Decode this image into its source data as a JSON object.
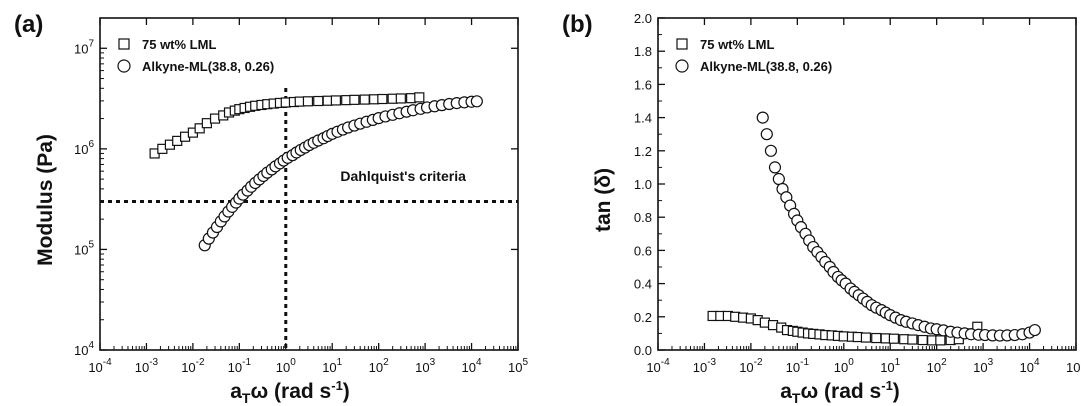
{
  "chart_data": [
    {
      "type": "scatter",
      "panel_label": "(a)",
      "xlabel": {
        "base": "a",
        "sub": "T",
        "greek": "ω",
        "units": " (rad s",
        "sup": "-1",
        "close": ")"
      },
      "ylabel": "Modulus (Pa)",
      "xscale": "log",
      "yscale": "log",
      "xlim": [
        0.0001,
        100000
      ],
      "ylim": [
        10000,
        20000000
      ],
      "x_ticks": [
        {
          "value": 0.0001,
          "base": "10",
          "exp": "-4"
        },
        {
          "value": 0.001,
          "base": "10",
          "exp": "-3"
        },
        {
          "value": 0.01,
          "base": "10",
          "exp": "-2"
        },
        {
          "value": 0.1,
          "base": "10",
          "exp": "-1"
        },
        {
          "value": 1,
          "base": "10",
          "exp": "0"
        },
        {
          "value": 10,
          "base": "10",
          "exp": "1"
        },
        {
          "value": 100,
          "base": "10",
          "exp": "2"
        },
        {
          "value": 1000,
          "base": "10",
          "exp": "3"
        },
        {
          "value": 10000,
          "base": "10",
          "exp": "4"
        },
        {
          "value": 100000,
          "base": "10",
          "exp": "5"
        }
      ],
      "y_ticks": [
        {
          "value": 10000,
          "base": "10",
          "exp": "4"
        },
        {
          "value": 100000,
          "base": "10",
          "exp": "5"
        },
        {
          "value": 1000000,
          "base": "10",
          "exp": "6"
        },
        {
          "value": 10000000,
          "base": "10",
          "exp": "7"
        }
      ],
      "legend_position": "top-left",
      "grid": false,
      "series": [
        {
          "name": "75 wt% LML",
          "marker": "square",
          "x": [
            0.0015,
            0.0022,
            0.0032,
            0.0046,
            0.0068,
            0.01,
            0.014,
            0.02,
            0.03,
            0.045,
            0.06,
            0.08,
            0.1,
            0.13,
            0.17,
            0.22,
            0.3,
            0.4,
            0.55,
            0.75,
            1,
            1.5,
            2,
            3,
            5,
            8,
            12,
            20,
            30,
            50,
            80,
            120,
            200,
            300,
            500,
            750
          ],
          "y": [
            900000,
            1000000,
            1100000,
            1200000,
            1320000,
            1450000,
            1600000,
            1800000,
            2000000,
            2150000,
            2300000,
            2400000,
            2480000,
            2550000,
            2620000,
            2680000,
            2730000,
            2780000,
            2820000,
            2860000,
            2890000,
            2920000,
            2950000,
            2970000,
            2990000,
            3010000,
            3030000,
            3050000,
            3070000,
            3090000,
            3110000,
            3130000,
            3150000,
            3170000,
            3190000,
            3250000
          ]
        },
        {
          "name": "Alkyne-ML(38.8, 0.26)",
          "marker": "circle",
          "x": [
            0.018,
            0.022,
            0.027,
            0.033,
            0.04,
            0.048,
            0.058,
            0.07,
            0.085,
            0.1,
            0.12,
            0.15,
            0.18,
            0.22,
            0.27,
            0.33,
            0.4,
            0.5,
            0.6,
            0.75,
            0.9,
            1.1,
            1.4,
            1.7,
            2.1,
            2.6,
            3.2,
            4,
            5,
            6.5,
            8,
            10,
            13,
            17,
            22,
            30,
            40,
            55,
            75,
            100,
            140,
            200,
            280,
            400,
            550,
            800,
            1100,
            1600,
            2300,
            3300,
            4800,
            7000,
            10000,
            13000
          ],
          "y": [
            110000,
            128000,
            147000,
            167000,
            190000,
            213000,
            238000,
            265000,
            292000,
            320000,
            350000,
            385000,
            420000,
            458000,
            497000,
            538000,
            580000,
            625000,
            670000,
            718000,
            765000,
            815000,
            865000,
            920000,
            975000,
            1030000,
            1090000,
            1150000,
            1210000,
            1275000,
            1340000,
            1410000,
            1480000,
            1555000,
            1630000,
            1705000,
            1780000,
            1860000,
            1940000,
            2020000,
            2100000,
            2180000,
            2260000,
            2340000,
            2420000,
            2500000,
            2580000,
            2650000,
            2720000,
            2790000,
            2850000,
            2900000,
            2940000,
            2970000
          ]
        }
      ],
      "reference_lines": [
        {
          "orientation": "horizontal",
          "value": 300000
        },
        {
          "orientation": "vertical",
          "value": 1
        }
      ],
      "annotations": [
        {
          "text": "Dahlquist's criteria",
          "x": 15,
          "y": 480000
        }
      ]
    },
    {
      "type": "scatter",
      "panel_label": "(b)",
      "xlabel": {
        "base": "a",
        "sub": "T",
        "greek": "ω",
        "units": " (rad s",
        "sup": "-1",
        "close": ")"
      },
      "ylabel": {
        "prefix": "tan (",
        "greek": "δ",
        "suffix": ")"
      },
      "xscale": "log",
      "yscale": "linear",
      "xlim": [
        0.0001,
        100000
      ],
      "ylim": [
        0,
        2
      ],
      "x_ticks": [
        {
          "value": 0.0001,
          "base": "10",
          "exp": "-4"
        },
        {
          "value": 0.001,
          "base": "10",
          "exp": "-3"
        },
        {
          "value": 0.01,
          "base": "10",
          "exp": "-2"
        },
        {
          "value": 0.1,
          "base": "10",
          "exp": "-1"
        },
        {
          "value": 1,
          "base": "10",
          "exp": "0"
        },
        {
          "value": 10,
          "base": "10",
          "exp": "1"
        },
        {
          "value": 100,
          "base": "10",
          "exp": "2"
        },
        {
          "value": 1000,
          "base": "10",
          "exp": "3"
        },
        {
          "value": 10000,
          "base": "10",
          "exp": "4"
        },
        {
          "value": 100000,
          "base": "10",
          "exp": "5"
        }
      ],
      "y_ticks": [
        "0.0",
        "0.2",
        "0.4",
        "0.6",
        "0.8",
        "1.0",
        "1.2",
        "1.4",
        "1.6",
        "1.8",
        "2.0"
      ],
      "legend_position": "top-left",
      "grid": false,
      "series": [
        {
          "name": "75 wt% LML",
          "marker": "square",
          "x": [
            0.0015,
            0.0022,
            0.0032,
            0.0046,
            0.0068,
            0.01,
            0.014,
            0.02,
            0.03,
            0.045,
            0.06,
            0.08,
            0.1,
            0.13,
            0.17,
            0.22,
            0.3,
            0.4,
            0.55,
            0.75,
            1,
            1.5,
            2,
            3,
            5,
            8,
            12,
            20,
            30,
            50,
            80,
            120,
            200,
            300,
            500,
            750
          ],
          "y": [
            0.205,
            0.205,
            0.205,
            0.2,
            0.195,
            0.19,
            0.18,
            0.165,
            0.15,
            0.135,
            0.12,
            0.115,
            0.11,
            0.105,
            0.1,
            0.097,
            0.094,
            0.09,
            0.088,
            0.085,
            0.082,
            0.08,
            0.078,
            0.075,
            0.072,
            0.07,
            0.068,
            0.065,
            0.063,
            0.06,
            0.058,
            0.058,
            0.06,
            0.065,
            0.1,
            0.14
          ]
        },
        {
          "name": "Alkyne-ML(38.8, 0.26)",
          "marker": "circle",
          "x": [
            0.018,
            0.022,
            0.027,
            0.033,
            0.04,
            0.048,
            0.058,
            0.07,
            0.085,
            0.1,
            0.12,
            0.15,
            0.18,
            0.22,
            0.27,
            0.33,
            0.4,
            0.5,
            0.6,
            0.75,
            0.9,
            1.1,
            1.4,
            1.7,
            2.1,
            2.6,
            3.2,
            4,
            5,
            6.5,
            8,
            10,
            13,
            17,
            22,
            30,
            40,
            55,
            75,
            100,
            140,
            200,
            280,
            400,
            550,
            800,
            1100,
            1600,
            2300,
            3300,
            4800,
            7000,
            10000,
            13000
          ],
          "y": [
            1.4,
            1.3,
            1.2,
            1.1,
            1.03,
            0.97,
            0.92,
            0.87,
            0.82,
            0.78,
            0.74,
            0.7,
            0.66,
            0.62,
            0.59,
            0.56,
            0.53,
            0.5,
            0.47,
            0.44,
            0.42,
            0.4,
            0.37,
            0.35,
            0.33,
            0.31,
            0.29,
            0.27,
            0.255,
            0.24,
            0.225,
            0.21,
            0.195,
            0.18,
            0.17,
            0.16,
            0.15,
            0.14,
            0.13,
            0.125,
            0.118,
            0.11,
            0.105,
            0.1,
            0.095,
            0.092,
            0.09,
            0.088,
            0.087,
            0.088,
            0.09,
            0.095,
            0.105,
            0.12
          ]
        }
      ],
      "reference_lines": [],
      "annotations": []
    }
  ]
}
